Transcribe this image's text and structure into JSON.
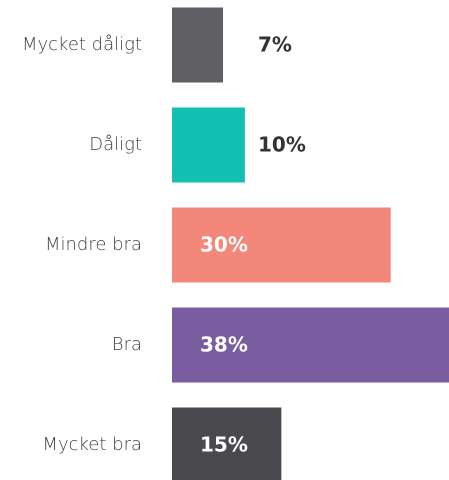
{
  "chart_data": {
    "type": "bar",
    "orientation": "horizontal",
    "categories": [
      "Mycket dåligt",
      "Dåligt",
      "Mindre bra",
      "Bra",
      "Mycket bra"
    ],
    "values": [
      7,
      10,
      30,
      38,
      15
    ],
    "value_labels": [
      "7%",
      "10%",
      "30%",
      "38%",
      "15%"
    ],
    "colors": [
      "#5f5e63",
      "#13bfb1",
      "#f2877a",
      "#7a5ca0",
      "#4a494e"
    ]
  }
}
